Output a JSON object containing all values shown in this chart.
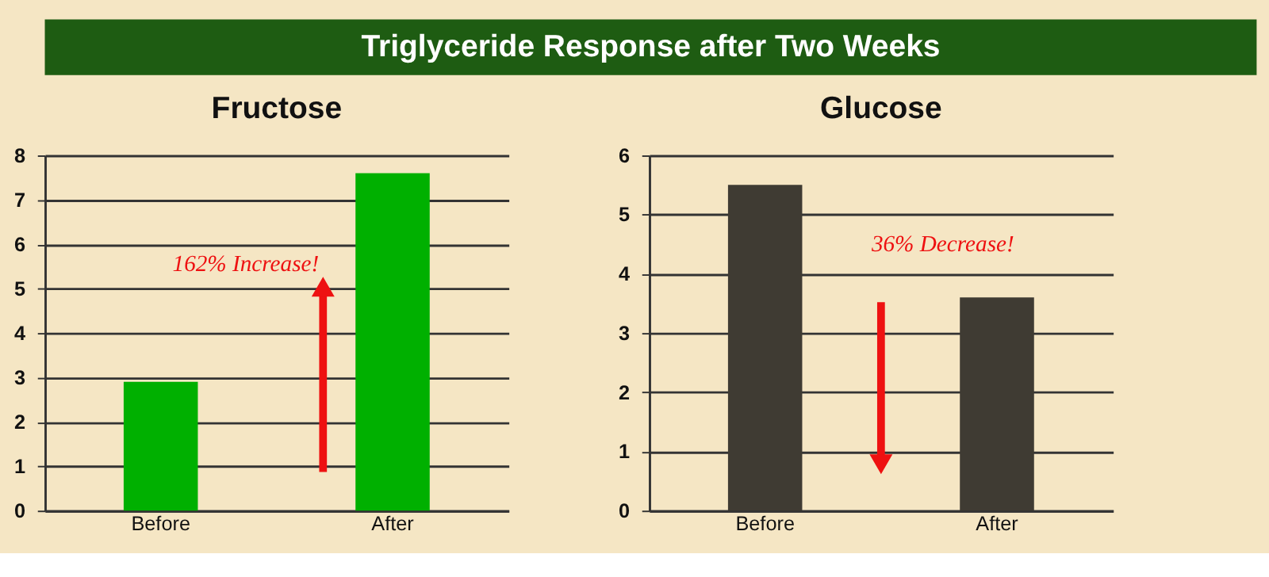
{
  "chart_data": [
    {
      "type": "other",
      "title": "Triglyceride Response after Two Weeks"
    },
    {
      "type": "bar",
      "title": "Fructose",
      "categories": [
        "Before",
        "After"
      ],
      "values": [
        2.9,
        7.6
      ],
      "color": "#00b000",
      "ylim": [
        0,
        8
      ],
      "yticks": [
        0,
        1,
        2,
        3,
        4,
        5,
        6,
        7,
        8
      ],
      "grid": "y",
      "annotations": [
        "162% Increase!"
      ]
    },
    {
      "type": "bar",
      "title": "Glucose",
      "categories": [
        "Before",
        "After"
      ],
      "values": [
        5.5,
        3.6
      ],
      "color": "#3f3b33",
      "ylim": [
        0,
        6
      ],
      "yticks": [
        0,
        1,
        2,
        3,
        4,
        5,
        6
      ],
      "grid": "y",
      "annotations": [
        "36% Decrease!"
      ]
    }
  ]
}
